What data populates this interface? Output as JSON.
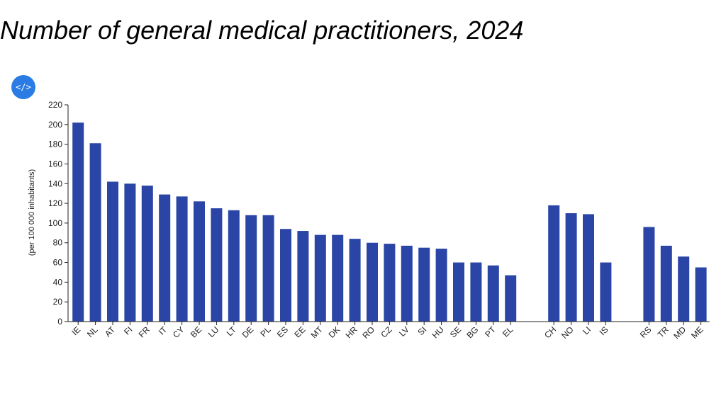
{
  "header": {
    "title": "Number of general medical practitioners, 2024",
    "embed_button_glyph": "</>",
    "embed_button_icon": "code-icon"
  },
  "chart_data": {
    "type": "bar",
    "title": "Number of general medical practitioners, 2024",
    "xlabel": "",
    "ylabel": "(per 100 000 inhabitants)",
    "ylim": [
      0,
      220
    ],
    "yticks": [
      0,
      20,
      40,
      60,
      80,
      100,
      120,
      140,
      160,
      180,
      200,
      220
    ],
    "grid": false,
    "bar_color": "#2a45a6",
    "groups": [
      {
        "categories": [
          "IE",
          "NL",
          "AT",
          "FI",
          "FR",
          "IT",
          "CY",
          "BE",
          "LU",
          "LT",
          "DE",
          "PL",
          "ES",
          "EE",
          "MT",
          "DK",
          "HR",
          "RO",
          "CZ",
          "LV",
          "SI",
          "HU",
          "SE",
          "BG",
          "PT",
          "EL"
        ],
        "values": [
          202,
          181,
          142,
          140,
          138,
          129,
          127,
          122,
          115,
          113,
          108,
          108,
          94,
          92,
          88,
          88,
          84,
          80,
          79,
          77,
          75,
          74,
          60,
          60,
          57,
          47
        ]
      },
      {
        "categories": [
          "CH",
          "NO",
          "LI",
          "IS"
        ],
        "values": [
          118,
          110,
          109,
          60
        ]
      },
      {
        "categories": [
          "RS",
          "TR",
          "MD",
          "ME"
        ],
        "values": [
          96,
          77,
          66,
          55
        ]
      }
    ]
  }
}
